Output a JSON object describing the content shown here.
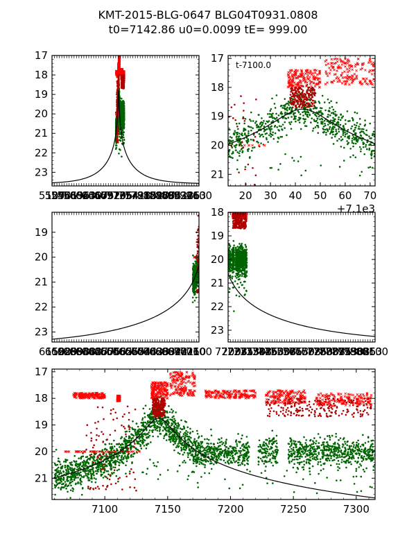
{
  "figure": {
    "title_line1": "KMT-2015-BLG-0647 BLG04T0931.0808",
    "title_line2": "t0=7142.86 u0=0.0099 tE= 999.00"
  },
  "model": {
    "t0": 7142.86,
    "u0": 0.0099,
    "tE": 999.0,
    "baseline_mag": 23.6,
    "peak_mag": 18.75
  },
  "colors": {
    "model_line": "#000000",
    "series_bright_red": "#ff0000",
    "series_dark_red": "#b00000",
    "series_green": "#006400",
    "series_green_light": "#2ca02c"
  },
  "chart_data": [
    {
      "id": "panel-top-left",
      "type": "scatter",
      "title": "",
      "xlabel": "",
      "ylabel": "",
      "xlim": [
        5107,
        9600
      ],
      "ylim": [
        23.7,
        17.0
      ],
      "y_inverted": true,
      "yticks": [
        17,
        18,
        19,
        20,
        21,
        22,
        23
      ],
      "xtick_labels_overlapping": true,
      "xtick_label_text": "5107 ... 9600",
      "annotation": "",
      "x_offset_label": "",
      "data_window": [
        7060,
        7315
      ]
    },
    {
      "id": "panel-top-right",
      "type": "scatter",
      "xlabel": "",
      "ylabel": "",
      "xlim": [
        7113,
        7172
      ],
      "ylim": [
        21.4,
        16.9
      ],
      "y_inverted": true,
      "yticks": [
        17,
        18,
        19,
        20,
        21
      ],
      "xticks": [
        7120,
        7130,
        7140,
        7150,
        7160,
        7170
      ],
      "xtick_labels": [
        "20",
        "30",
        "40",
        "50",
        "60",
        "70"
      ],
      "annotation": "t-7100.0",
      "x_offset_label": "+7.1e3",
      "data_window": [
        7113,
        7172
      ]
    },
    {
      "id": "panel-mid-left",
      "type": "scatter",
      "xlabel": "",
      "ylabel": "",
      "xlim": [
        6150,
        7100
      ],
      "ylim": [
        23.4,
        18.2
      ],
      "y_inverted": true,
      "yticks": [
        19,
        20,
        21,
        22,
        23
      ],
      "xtick_labels_overlapping": true,
      "xtick_label_text": "6150 ... 7100",
      "annotation": "",
      "x_offset_label": "",
      "data_window": [
        7060,
        7100
      ]
    },
    {
      "id": "panel-mid-right",
      "type": "scatter",
      "xlabel": "",
      "ylabel": "",
      "xlim": [
        7200,
        8100
      ],
      "ylim": [
        23.5,
        18.0
      ],
      "y_inverted": true,
      "yticks": [
        18,
        19,
        20,
        21,
        22,
        23
      ],
      "xtick_labels_overlapping": true,
      "xtick_label_text": "7200 ... 8100",
      "annotation": "",
      "x_offset_label": "+7.1e3",
      "data_window": [
        7200,
        7315
      ]
    },
    {
      "id": "panel-bottom",
      "type": "scatter",
      "xlabel": "",
      "ylabel": "",
      "xlim": [
        7058,
        7315
      ],
      "ylim": [
        21.8,
        16.9
      ],
      "y_inverted": true,
      "yticks": [
        17,
        18,
        19,
        20,
        21
      ],
      "xticks": [
        7100,
        7150,
        7200,
        7250,
        7300
      ],
      "xtick_labels": [
        "7100",
        "7150",
        "7200",
        "7250",
        "7300"
      ],
      "annotation": "",
      "x_offset_label": "",
      "data_window": [
        7058,
        7315
      ]
    }
  ],
  "series": [
    {
      "name": "bright-red-crosses",
      "marker": "x",
      "color_key": "series_bright_red",
      "segments": [
        {
          "t": [
            7075,
            7100
          ],
          "mag": [
            17.8,
            18.0
          ]
        },
        {
          "t": [
            7110,
            7112
          ],
          "mag": [
            17.9,
            18.1
          ]
        },
        {
          "t": [
            7137,
            7150
          ],
          "mag": [
            17.4,
            18.0
          ]
        },
        {
          "t": [
            7152,
            7172
          ],
          "mag": [
            17.0,
            17.9
          ]
        },
        {
          "t": [
            7180,
            7220
          ],
          "mag": [
            17.7,
            18.0
          ]
        },
        {
          "t": [
            7228,
            7260
          ],
          "mag": [
            17.7,
            18.2
          ]
        },
        {
          "t": [
            7268,
            7312
          ],
          "mag": [
            17.8,
            18.3
          ]
        },
        {
          "t": [
            7068,
            7128
          ],
          "mag": [
            20.0,
            20.0
          ]
        }
      ]
    },
    {
      "name": "dark-red-dots",
      "marker": "o",
      "color_key": "series_dark_red",
      "segments": [
        {
          "t": [
            7138,
            7148
          ],
          "mag": [
            18.0,
            18.7
          ]
        },
        {
          "t": [
            7228,
            7312
          ],
          "mag": [
            18.0,
            18.7
          ]
        },
        {
          "t": [
            7085,
            7125
          ],
          "mag": [
            18.3,
            21.5
          ]
        }
      ]
    },
    {
      "name": "green-dots",
      "marker": "o",
      "color_key": "series_green",
      "segments": [
        {
          "t": [
            7060,
            7140
          ],
          "mag": "model+scatter"
        },
        {
          "t": [
            7140,
            7180
          ],
          "mag": "model+scatter"
        },
        {
          "t": [
            7180,
            7315
          ],
          "mag": [
            19.6,
            20.4
          ]
        }
      ]
    }
  ]
}
